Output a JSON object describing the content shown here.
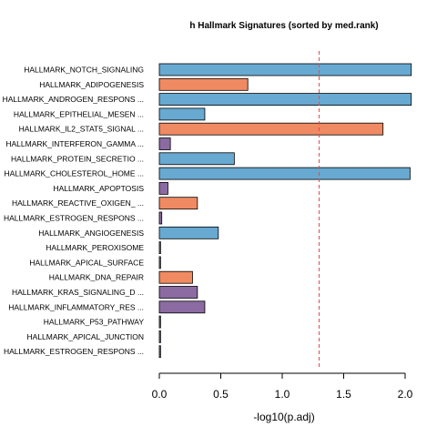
{
  "chart_data": {
    "type": "bar",
    "orientation": "horizontal",
    "title": "h Hallmark Signatures (sorted by med.rank)",
    "xlabel": "-log10(p.adj)",
    "ylabel": "",
    "xlim": [
      0,
      2.1
    ],
    "xticks": [
      0.0,
      0.5,
      1.0,
      1.5,
      2.0
    ],
    "xtick_labels": [
      "0.0",
      "0.5",
      "1.0",
      "1.5",
      "2.0"
    ],
    "threshold_line": {
      "value": 1.3,
      "color": "#e8494c",
      "style": "dashed"
    },
    "grid": false,
    "legend": "none",
    "colors": {
      "blue": "#67a9d1",
      "orange": "#f08a62",
      "purple": "#8b6ba2"
    },
    "categories": [
      "HALLMARK_NOTCH_SIGNALING",
      "HALLMARK_ADIPOGENESIS",
      "HALLMARK_ANDROGEN_RESPONS ...",
      "HALLMARK_EPITHELIAL_MESEN ...",
      "HALLMARK_IL2_STAT5_SIGNAL ...",
      "HALLMARK_INTERFERON_GAMMA ...",
      "HALLMARK_PROTEIN_SECRETIO ...",
      "HALLMARK_CHOLESTEROL_HOME ...",
      "HALLMARK_APOPTOSIS",
      "HALLMARK_REACTIVE_OXIGEN_ ...",
      "HALLMARK_ESTROGEN_RESPONS ...",
      "HALLMARK_ANGIOGENESIS",
      "HALLMARK_PEROXISOME",
      "HALLMARK_APICAL_SURFACE",
      "HALLMARK_DNA_REPAIR",
      "HALLMARK_KRAS_SIGNALING_D ...",
      "HALLMARK_INFLAMMATORY_RES ...",
      "HALLMARK_P53_PATHWAY",
      "HALLMARK_APICAL_JUNCTION",
      "HALLMARK_ESTROGEN_RESPONS ..."
    ],
    "values": [
      2.05,
      0.72,
      2.05,
      0.37,
      1.82,
      0.09,
      0.61,
      2.04,
      0.07,
      0.31,
      0.02,
      0.48,
      0.01,
      0.01,
      0.27,
      0.31,
      0.37,
      0.01,
      0.01,
      0.01
    ],
    "bar_colors": [
      "blue",
      "orange",
      "blue",
      "blue",
      "orange",
      "purple",
      "blue",
      "blue",
      "purple",
      "orange",
      "purple",
      "blue",
      "purple",
      "purple",
      "orange",
      "purple",
      "purple",
      "purple",
      "purple",
      "purple"
    ]
  }
}
